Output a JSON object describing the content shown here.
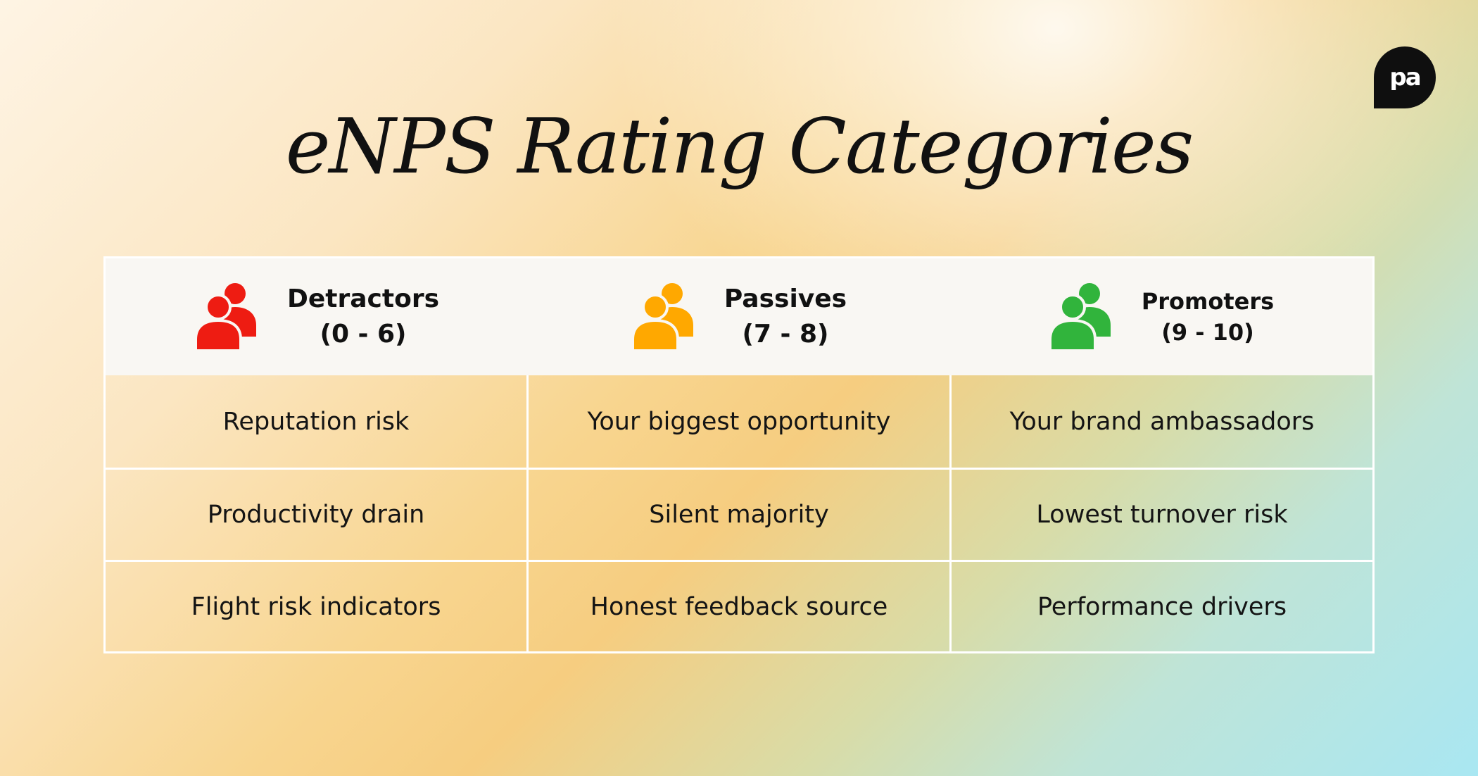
{
  "title": "eNPS Rating Categories",
  "logo": {
    "text": "pa"
  },
  "colors": {
    "detractors": "#ee1c12",
    "passives": "#ffa800",
    "promoters": "#31b43c"
  },
  "categories": [
    {
      "name": "Detractors",
      "range": "(0 - 6)",
      "icon": "people-icon",
      "color": "#ee1c12",
      "items": [
        "Reputation risk",
        "Productivity drain",
        "Flight risk indicators"
      ]
    },
    {
      "name": "Passives",
      "range": "(7 - 8)",
      "icon": "people-icon",
      "color": "#ffa800",
      "items": [
        "Your biggest opportunity",
        "Silent majority",
        "Honest feedback source"
      ]
    },
    {
      "name": "Promoters",
      "range": "(9 - 10)",
      "icon": "people-icon",
      "color": "#31b43c",
      "items": [
        "Your brand ambassadors",
        "Lowest turnover risk",
        "Performance drivers"
      ]
    }
  ]
}
